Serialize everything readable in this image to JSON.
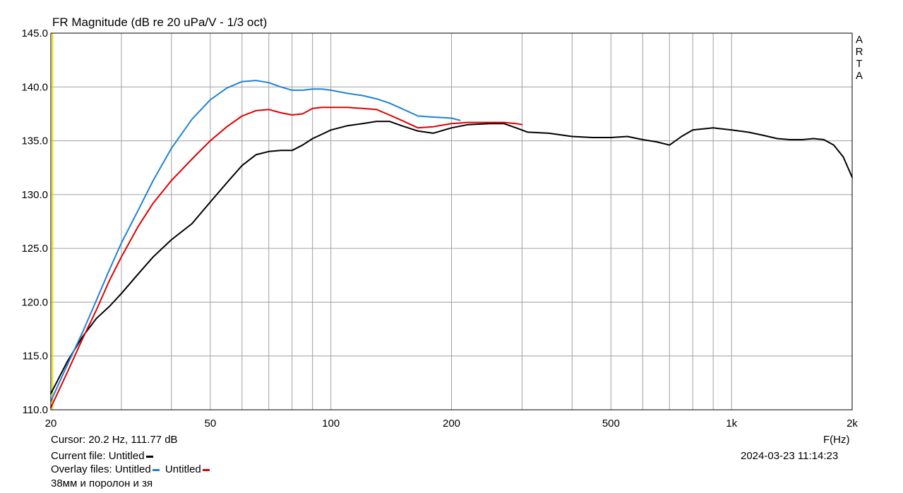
{
  "chart_data": {
    "type": "line",
    "title": "FR Magnitude (dB re 20 uPa/V - 1/3 oct)",
    "xlabel": "F(Hz)",
    "ylabel": "",
    "xscale": "log",
    "xlim": [
      20,
      2000
    ],
    "ylim": [
      110,
      145
    ],
    "x_ticks": [
      {
        "value": 20,
        "label": "20"
      },
      {
        "value": 50,
        "label": "50"
      },
      {
        "value": 100,
        "label": "100"
      },
      {
        "value": 200,
        "label": "200"
      },
      {
        "value": 500,
        "label": "500"
      },
      {
        "value": 1000,
        "label": "1k"
      },
      {
        "value": 2000,
        "label": "2k"
      }
    ],
    "y_ticks": [
      {
        "value": 110,
        "label": "110.0"
      },
      {
        "value": 115,
        "label": "115.0"
      },
      {
        "value": 120,
        "label": "120.0"
      },
      {
        "value": 125,
        "label": "125.0"
      },
      {
        "value": 130,
        "label": "130.0"
      },
      {
        "value": 135,
        "label": "135.0"
      },
      {
        "value": 140,
        "label": "140.0"
      },
      {
        "value": 145,
        "label": "145.0"
      }
    ],
    "grid": true,
    "cursor_hz": 20.2,
    "series": [
      {
        "color": "#000000",
        "x": [
          20,
          22,
          24,
          26,
          28,
          30,
          33,
          36,
          40,
          45,
          50,
          55,
          60,
          65,
          70,
          75,
          80,
          85,
          90,
          95,
          100,
          110,
          120,
          130,
          140,
          150,
          165,
          180,
          200,
          220,
          250,
          270,
          290,
          310,
          350,
          400,
          450,
          500,
          550,
          600,
          650,
          700,
          750,
          800,
          900,
          1000,
          1100,
          1200,
          1300,
          1400,
          1500,
          1600,
          1700,
          1800,
          1900,
          2000
        ],
        "y": [
          111.5,
          114.5,
          116.8,
          118.5,
          119.6,
          120.8,
          122.6,
          124.2,
          125.8,
          127.3,
          129.3,
          131.1,
          132.7,
          133.7,
          134.0,
          134.1,
          134.1,
          134.6,
          135.2,
          135.6,
          136.0,
          136.4,
          136.6,
          136.8,
          136.8,
          136.4,
          135.9,
          135.7,
          136.2,
          136.5,
          136.6,
          136.6,
          136.2,
          135.8,
          135.7,
          135.4,
          135.3,
          135.3,
          135.4,
          135.1,
          134.9,
          134.6,
          135.4,
          136.0,
          136.2,
          136.0,
          135.8,
          135.5,
          135.2,
          135.1,
          135.1,
          135.2,
          135.1,
          134.6,
          133.5,
          131.6
        ]
      },
      {
        "color": "#1f82d8",
        "x": [
          20,
          22,
          24,
          26,
          28,
          30,
          33,
          36,
          40,
          45,
          50,
          55,
          60,
          65,
          70,
          75,
          80,
          85,
          90,
          95,
          100,
          110,
          120,
          130,
          140,
          150,
          165,
          180,
          200,
          210
        ],
        "y": [
          110.8,
          114.2,
          117.2,
          120.2,
          123.0,
          125.5,
          128.5,
          131.3,
          134.3,
          137.0,
          138.8,
          139.9,
          140.5,
          140.6,
          140.4,
          140.0,
          139.7,
          139.7,
          139.8,
          139.8,
          139.7,
          139.4,
          139.2,
          138.9,
          138.5,
          138.0,
          137.3,
          137.2,
          137.1,
          136.9
        ]
      },
      {
        "color": "#e00000",
        "x": [
          20,
          22,
          24,
          26,
          28,
          30,
          33,
          36,
          40,
          45,
          50,
          55,
          60,
          65,
          70,
          75,
          80,
          85,
          90,
          95,
          100,
          110,
          120,
          130,
          140,
          150,
          165,
          180,
          200,
          220,
          250,
          270,
          290,
          300
        ],
        "y": [
          110.2,
          113.5,
          116.6,
          119.3,
          122.0,
          124.2,
          127.0,
          129.2,
          131.3,
          133.3,
          135.0,
          136.3,
          137.3,
          137.8,
          137.9,
          137.6,
          137.4,
          137.5,
          138.0,
          138.1,
          138.1,
          138.1,
          138.0,
          137.9,
          137.4,
          136.9,
          136.2,
          136.3,
          136.6,
          136.7,
          136.7,
          136.7,
          136.6,
          136.5
        ]
      }
    ]
  },
  "ui": {
    "cursor_text": "Cursor: 20.2 Hz, 111.77 dB",
    "current_file_label": "Current file: Untitled",
    "overlay_files_label": "Overlay files: Untitled",
    "overlay_second_label": "Untitled",
    "comment": "38мм и поролон и зя",
    "date_time": "2024-03-23   11:14:23",
    "watermark": "ARTA",
    "colors": {
      "current": "#000000",
      "overlay1": "#1f82d8",
      "overlay2": "#e00000",
      "cursor": "#e8e000",
      "grid": "#a0a0a0"
    }
  }
}
